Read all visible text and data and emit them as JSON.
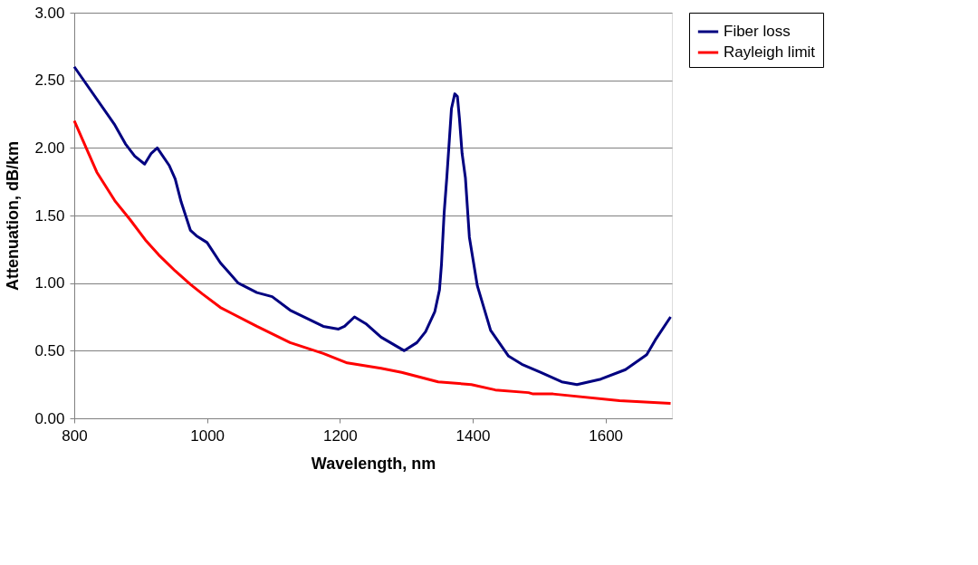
{
  "chart_data": {
    "type": "line",
    "xlabel": "Wavelength, nm",
    "ylabel": "Attenuation, dB/km",
    "xlim": [
      800,
      1700
    ],
    "xticks": [
      800,
      1000,
      1200,
      1400,
      1600
    ],
    "ylim": [
      0,
      3
    ],
    "yticks": [
      {
        "value": 0,
        "label": "0.00"
      },
      {
        "value": 0.5,
        "label": "0.50"
      },
      {
        "value": 1,
        "label": "1.00"
      },
      {
        "value": 1.5,
        "label": "1.50"
      },
      {
        "value": 2,
        "label": "2.00"
      },
      {
        "value": 2.5,
        "label": "2.50"
      },
      {
        "value": 3,
        "label": "3.00"
      }
    ],
    "grid": "y",
    "legend": "right",
    "marker": "none",
    "line_style": "solid",
    "series": [
      {
        "name": "Fiber loss",
        "color": "#000080",
        "x": [
          800,
          861,
          877,
          891,
          906,
          916,
          925,
          943,
          952,
          961,
          975,
          984,
          1000,
          1020,
          1047,
          1075,
          1098,
          1125,
          1175,
          1198,
          1207,
          1222,
          1239,
          1262,
          1297,
          1316,
          1329,
          1343,
          1350,
          1353,
          1357,
          1361,
          1365,
          1368,
          1373,
          1377,
          1380,
          1384,
          1389,
          1395,
          1407,
          1427,
          1454,
          1474,
          1502,
          1534,
          1557,
          1593,
          1630,
          1662,
          1675,
          1698
        ],
        "values": [
          2.6,
          2.17,
          2.03,
          1.94,
          1.88,
          1.96,
          2.0,
          1.87,
          1.77,
          1.6,
          1.39,
          1.35,
          1.3,
          1.15,
          1.0,
          0.93,
          0.9,
          0.8,
          0.68,
          0.66,
          0.68,
          0.75,
          0.7,
          0.6,
          0.5,
          0.56,
          0.64,
          0.79,
          0.95,
          1.14,
          1.52,
          1.78,
          2.07,
          2.29,
          2.4,
          2.38,
          2.22,
          1.96,
          1.78,
          1.34,
          0.98,
          0.65,
          0.46,
          0.4,
          0.34,
          0.27,
          0.25,
          0.29,
          0.36,
          0.47,
          0.58,
          0.75
        ]
      },
      {
        "name": "Rayleigh limit",
        "color": "#ff0000",
        "x": [
          800,
          834,
          861,
          884,
          907,
          927,
          952,
          975,
          993,
          1020,
          1075,
          1125,
          1175,
          1211,
          1262,
          1293,
          1348,
          1398,
          1434,
          1484,
          1491,
          1521,
          1621,
          1698
        ],
        "values": [
          2.2,
          1.82,
          1.61,
          1.47,
          1.32,
          1.21,
          1.09,
          0.99,
          0.92,
          0.82,
          0.68,
          0.56,
          0.48,
          0.41,
          0.37,
          0.34,
          0.27,
          0.25,
          0.21,
          0.19,
          0.18,
          0.18,
          0.13,
          0.11
        ]
      }
    ]
  }
}
